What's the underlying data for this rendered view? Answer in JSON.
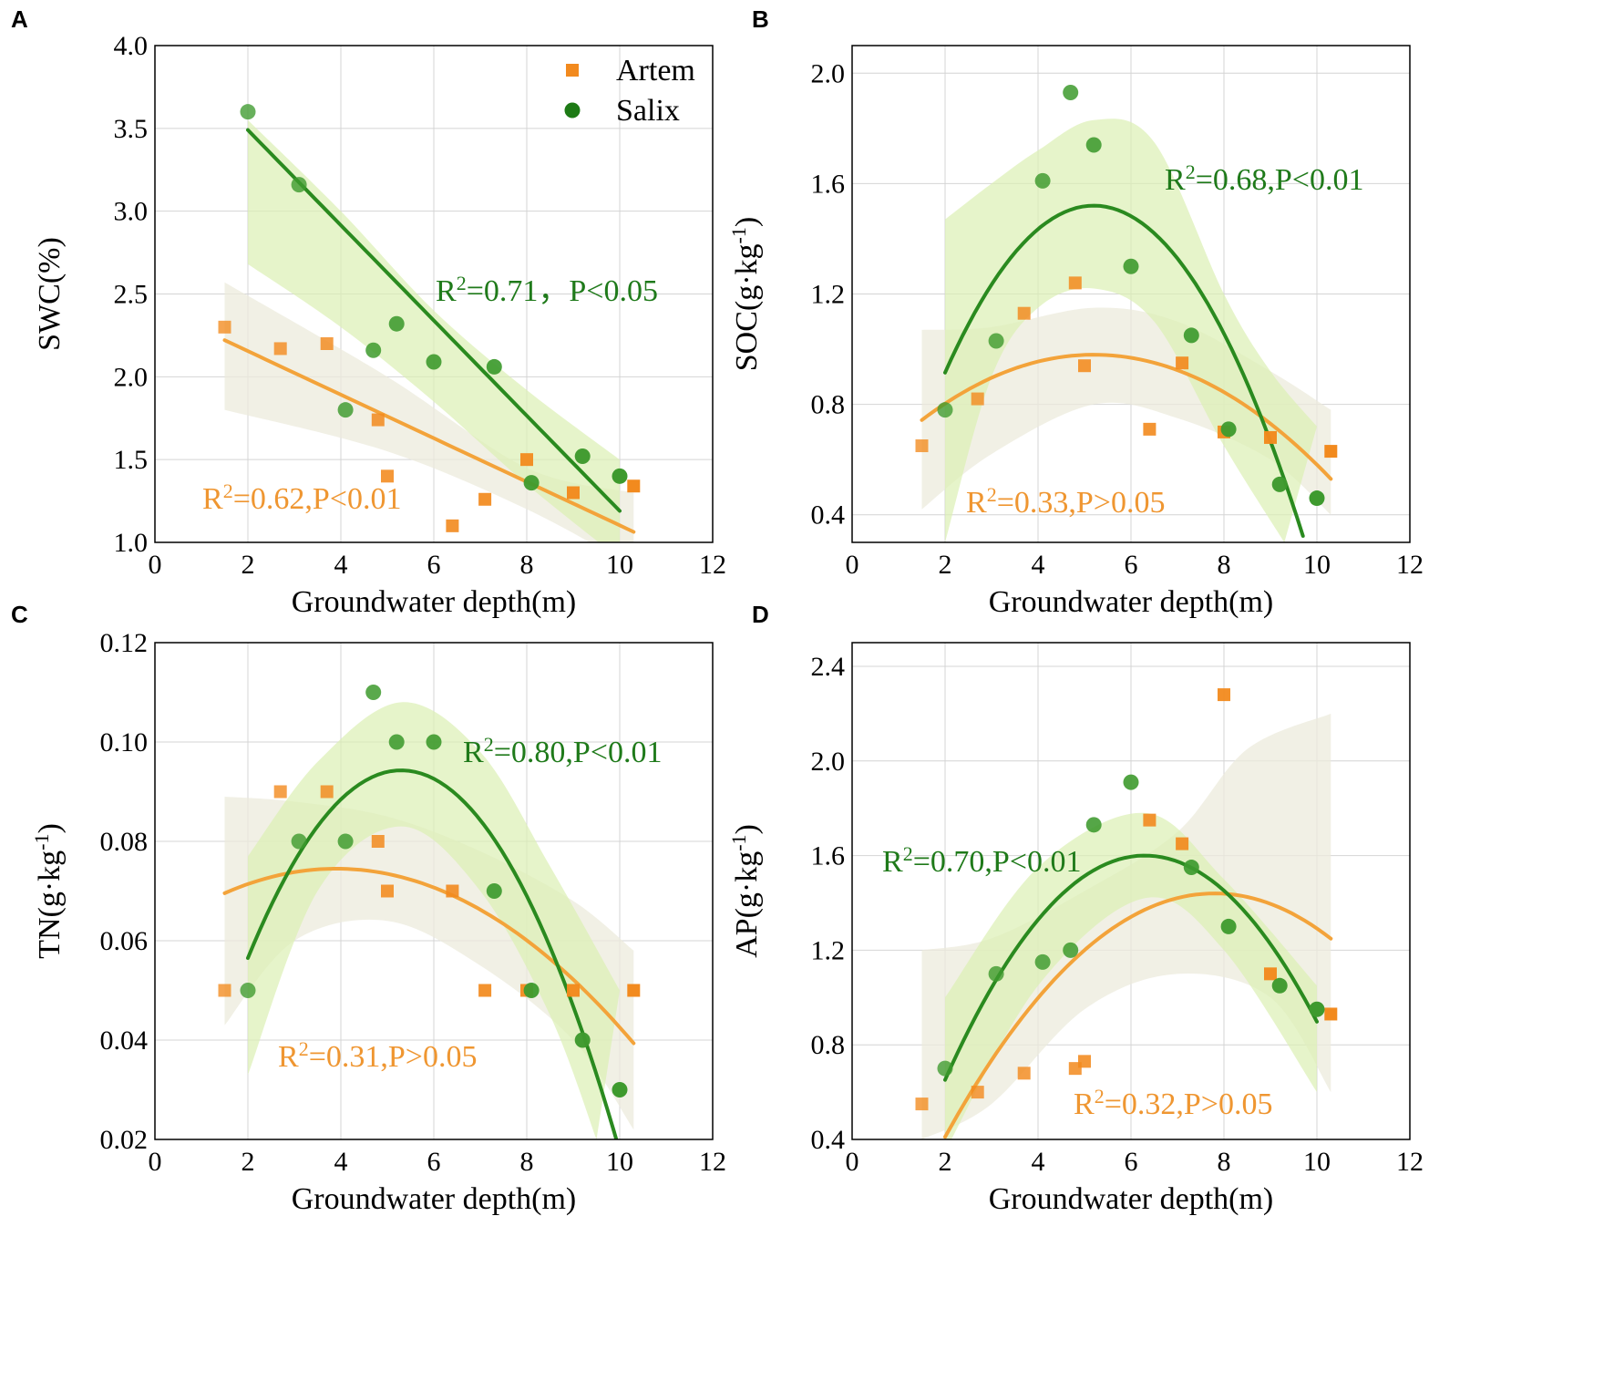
{
  "colors": {
    "artem": "#f28a1e",
    "artem_fit": "#f3a33a",
    "artem_band": "#ecebdc",
    "salix": "#2a8a1f",
    "salix_point": "#3e9a2e",
    "salix_band": "#dcefb4",
    "salix_text": "#1f7a1a",
    "artem_text": "#ef9631"
  },
  "legend": {
    "artem": "Artem",
    "salix": "Salix"
  },
  "chart_data": [
    {
      "panel": "A",
      "type": "scatter",
      "xlabel": "Groundwater depth(m)",
      "ylabel": "SWC(%)",
      "xlim": [
        0,
        12
      ],
      "ylim": [
        1.0,
        4.0
      ],
      "xticks": [
        0,
        2,
        4,
        6,
        8,
        10,
        12
      ],
      "yticks": [
        1.0,
        1.5,
        2.0,
        2.5,
        3.0,
        3.5,
        4.0
      ],
      "ytick_labels": [
        "1.0",
        "1.5",
        "2.0",
        "2.5",
        "3.0",
        "3.5",
        "4.0"
      ],
      "legend": true,
      "series": [
        {
          "name": "Artem",
          "points": [
            [
              1.5,
              2.3
            ],
            [
              2.7,
              2.17
            ],
            [
              3.7,
              2.2
            ],
            [
              4.8,
              1.74
            ],
            [
              5.0,
              1.4
            ],
            [
              6.4,
              1.1
            ],
            [
              7.1,
              1.26
            ],
            [
              8.0,
              1.5
            ],
            [
              9.0,
              1.3
            ],
            [
              10.3,
              1.34
            ]
          ],
          "fit": {
            "kind": "linear",
            "coef": [
              2.418,
              -0.1315
            ],
            "range": [
              1.5,
              10.3
            ]
          },
          "band": {
            "lower": [
              [
                1.5,
                1.8
              ],
              [
                5.0,
                1.55
              ],
              [
                8.0,
                1.2
              ],
              [
                10.3,
                0.85
              ]
            ],
            "upper": [
              [
                1.5,
                2.57
              ],
              [
                5.0,
                2.0
              ],
              [
                8.0,
                1.45
              ],
              [
                10.3,
                1.3
              ]
            ]
          },
          "stat": "R²=0.62,P<0.01"
        },
        {
          "name": "Salix",
          "points": [
            [
              2.0,
              3.6
            ],
            [
              3.1,
              3.16
            ],
            [
              4.1,
              1.8
            ],
            [
              4.7,
              2.16
            ],
            [
              5.2,
              2.32
            ],
            [
              6.0,
              2.09
            ],
            [
              7.3,
              2.06
            ],
            [
              8.1,
              1.36
            ],
            [
              9.2,
              1.52
            ],
            [
              10.0,
              1.4
            ]
          ],
          "fit": {
            "kind": "linear",
            "coef": [
              4.065,
              -0.2875
            ],
            "range": [
              2.0,
              10.0
            ]
          },
          "band": {
            "lower": [
              [
                2.0,
                2.68
              ],
              [
                4.0,
                2.3
              ],
              [
                6.0,
                1.85
              ],
              [
                8.0,
                1.35
              ],
              [
                10.0,
                0.9
              ]
            ],
            "upper": [
              [
                2.0,
                3.55
              ],
              [
                4.0,
                3.0
              ],
              [
                6.0,
                2.4
              ],
              [
                8.0,
                1.92
              ],
              [
                10.0,
                1.5
              ]
            ]
          },
          "stat": "R²=0.71，P<0.05"
        }
      ]
    },
    {
      "panel": "B",
      "type": "scatter",
      "xlabel": "Groundwater depth(m)",
      "ylabel": "SOC(g·kg⁻¹)",
      "xlim": [
        0,
        12
      ],
      "ylim": [
        0.3,
        2.1
      ],
      "xticks": [
        0,
        2,
        4,
        6,
        8,
        10,
        12
      ],
      "yticks": [
        0.4,
        0.8,
        1.2,
        1.6,
        2.0
      ],
      "ytick_labels": [
        "0.4",
        "0.8",
        "1.2",
        "1.6",
        "2.0"
      ],
      "legend": false,
      "series": [
        {
          "name": "Artem",
          "points": [
            [
              1.5,
              0.65
            ],
            [
              2.7,
              0.82
            ],
            [
              3.7,
              1.13
            ],
            [
              4.8,
              1.24
            ],
            [
              5.0,
              0.94
            ],
            [
              6.4,
              0.71
            ],
            [
              7.1,
              0.95
            ],
            [
              8.0,
              0.7
            ],
            [
              9.0,
              0.68
            ],
            [
              10.3,
              0.63
            ]
          ],
          "fit": {
            "kind": "quadratic",
            "coef": [
              0.98,
              5.2,
              -0.0173
            ],
            "range": [
              1.5,
              10.3
            ]
          },
          "band": {
            "lower": [
              [
                1.5,
                0.42
              ],
              [
                3.0,
                0.62
              ],
              [
                5.2,
                0.8
              ],
              [
                7.0,
                0.75
              ],
              [
                9.0,
                0.6
              ],
              [
                10.3,
                0.4
              ]
            ],
            "upper": [
              [
                1.5,
                1.07
              ],
              [
                3.0,
                1.08
              ],
              [
                5.2,
                1.15
              ],
              [
                7.0,
                1.1
              ],
              [
                9.0,
                0.92
              ],
              [
                10.3,
                0.78
              ]
            ]
          },
          "stat": "R²=0.33,P>0.05"
        },
        {
          "name": "Salix",
          "points": [
            [
              2.0,
              0.78
            ],
            [
              3.1,
              1.03
            ],
            [
              4.1,
              1.61
            ],
            [
              4.7,
              1.93
            ],
            [
              5.2,
              1.74
            ],
            [
              6.0,
              1.3
            ],
            [
              7.3,
              1.05
            ],
            [
              8.1,
              0.71
            ],
            [
              9.2,
              0.51
            ],
            [
              10.0,
              0.46
            ]
          ],
          "fit": {
            "kind": "quadratic",
            "coef": [
              1.52,
              5.2,
              -0.0591
            ],
            "range": [
              2.0,
              9.7
            ]
          },
          "band": {
            "lower": [
              [
                2.0,
                0.3
              ],
              [
                3.0,
                0.9
              ],
              [
                4.0,
                1.15
              ],
              [
                5.2,
                1.22
              ],
              [
                6.5,
                1.1
              ],
              [
                8.0,
                0.65
              ],
              [
                9.3,
                0.3
              ]
            ],
            "upper": [
              [
                2.0,
                1.47
              ],
              [
                3.0,
                1.6
              ],
              [
                4.0,
                1.72
              ],
              [
                5.2,
                1.83
              ],
              [
                6.5,
                1.75
              ],
              [
                8.0,
                1.2
              ],
              [
                9.0,
                0.92
              ],
              [
                10.0,
                0.72
              ]
            ]
          },
          "stat": "R²=0.68,P<0.01"
        }
      ]
    },
    {
      "panel": "C",
      "type": "scatter",
      "xlabel": "Groundwater depth(m)",
      "ylabel": "TN(g·kg⁻¹)",
      "xlim": [
        0,
        12
      ],
      "ylim": [
        0.02,
        0.12
      ],
      "xticks": [
        0,
        2,
        4,
        6,
        8,
        10,
        12
      ],
      "yticks": [
        0.02,
        0.04,
        0.06,
        0.08,
        0.1,
        0.12
      ],
      "ytick_labels": [
        "0.02",
        "0.04",
        "0.06",
        "0.08",
        "0.10",
        "0.12"
      ],
      "legend": false,
      "series": [
        {
          "name": "Artem",
          "points": [
            [
              1.5,
              0.05
            ],
            [
              2.7,
              0.09
            ],
            [
              3.7,
              0.09
            ],
            [
              4.8,
              0.08
            ],
            [
              5.0,
              0.07
            ],
            [
              6.4,
              0.07
            ],
            [
              7.1,
              0.05
            ],
            [
              8.0,
              0.05
            ],
            [
              9.0,
              0.05
            ],
            [
              10.3,
              0.05
            ]
          ],
          "fit": {
            "kind": "quadratic",
            "coef": [
              0.0745,
              3.9,
              -0.000858
            ],
            "range": [
              1.5,
              10.3
            ]
          },
          "band": {
            "lower": [
              [
                1.5,
                0.043
              ],
              [
                3.0,
                0.06
              ],
              [
                5.0,
                0.064
              ],
              [
                7.0,
                0.055
              ],
              [
                9.0,
                0.04
              ],
              [
                10.3,
                0.022
              ]
            ],
            "upper": [
              [
                1.5,
                0.089
              ],
              [
                3.0,
                0.088
              ],
              [
                5.0,
                0.085
              ],
              [
                7.0,
                0.078
              ],
              [
                9.0,
                0.068
              ],
              [
                10.3,
                0.058
              ]
            ]
          },
          "stat": "R²=0.31,P>0.05"
        },
        {
          "name": "Salix",
          "points": [
            [
              2.0,
              0.05
            ],
            [
              3.1,
              0.08
            ],
            [
              4.1,
              0.08
            ],
            [
              4.7,
              0.11
            ],
            [
              5.2,
              0.1
            ],
            [
              6.0,
              0.1
            ],
            [
              7.3,
              0.07
            ],
            [
              8.1,
              0.05
            ],
            [
              9.2,
              0.04
            ],
            [
              10.0,
              0.03
            ]
          ],
          "fit": {
            "kind": "quadratic",
            "coef": [
              0.0943,
              5.3,
              -0.00347
            ],
            "range": [
              2.0,
              10.0
            ]
          },
          "band": {
            "lower": [
              [
                2.0,
                0.033
              ],
              [
                3.5,
                0.07
              ],
              [
                5.3,
                0.083
              ],
              [
                7.0,
                0.07
              ],
              [
                8.5,
                0.045
              ],
              [
                9.5,
                0.02
              ]
            ],
            "upper": [
              [
                2.0,
                0.077
              ],
              [
                3.5,
                0.096
              ],
              [
                5.3,
                0.108
              ],
              [
                7.0,
                0.098
              ],
              [
                8.5,
                0.075
              ],
              [
                10.0,
                0.05
              ]
            ]
          },
          "stat": "R²=0.80,P<0.01"
        }
      ]
    },
    {
      "panel": "D",
      "type": "scatter",
      "xlabel": "Groundwater depth(m)",
      "ylabel": "AP(g·kg⁻¹)",
      "xlim": [
        0,
        12
      ],
      "ylim": [
        0.4,
        2.5
      ],
      "xticks": [
        0,
        2,
        4,
        6,
        8,
        10,
        12
      ],
      "yticks": [
        0.4,
        0.8,
        1.2,
        1.6,
        2.0,
        2.4
      ],
      "ytick_labels": [
        "0.4",
        "0.8",
        "1.2",
        "1.6",
        "2.0",
        "2.4"
      ],
      "legend": false,
      "series": [
        {
          "name": "Artem",
          "points": [
            [
              1.5,
              0.55
            ],
            [
              2.7,
              0.6
            ],
            [
              3.7,
              0.68
            ],
            [
              4.8,
              0.7
            ],
            [
              5.0,
              0.73
            ],
            [
              6.4,
              1.75
            ],
            [
              7.1,
              1.65
            ],
            [
              8.0,
              2.28
            ],
            [
              9.0,
              1.1
            ],
            [
              10.3,
              0.93
            ]
          ],
          "fit": {
            "kind": "quadratic",
            "coef": [
              1.44,
              7.8,
              -0.0306
            ],
            "range": [
              2.0,
              10.3
            ]
          },
          "band": {
            "lower": [
              [
                1.5,
                0.4
              ],
              [
                3.0,
                0.55
              ],
              [
                5.0,
                0.95
              ],
              [
                7.0,
                1.1
              ],
              [
                9.0,
                1.0
              ],
              [
                10.3,
                0.6
              ]
            ],
            "upper": [
              [
                1.5,
                1.2
              ],
              [
                3.0,
                1.25
              ],
              [
                5.0,
                1.45
              ],
              [
                7.0,
                1.7
              ],
              [
                8.5,
                2.05
              ],
              [
                10.3,
                2.2
              ]
            ]
          },
          "stat": "R²=0.32,P>0.05"
        },
        {
          "name": "Salix",
          "points": [
            [
              2.0,
              0.7
            ],
            [
              3.1,
              1.1
            ],
            [
              4.1,
              1.15
            ],
            [
              4.7,
              1.2
            ],
            [
              5.2,
              1.73
            ],
            [
              6.0,
              1.91
            ],
            [
              7.3,
              1.55
            ],
            [
              8.1,
              1.3
            ],
            [
              9.2,
              1.05
            ],
            [
              10.0,
              0.95
            ]
          ],
          "fit": {
            "kind": "quadratic",
            "coef": [
              1.6,
              6.3,
              -0.0513
            ],
            "range": [
              2.0,
              10.0
            ]
          },
          "band": {
            "lower": [
              [
                2.0,
                0.35
              ],
              [
                4.0,
                1.05
              ],
              [
                6.3,
                1.42
              ],
              [
                8.0,
                1.2
              ],
              [
                10.0,
                0.6
              ]
            ],
            "upper": [
              [
                2.0,
                1.0
              ],
              [
                4.0,
                1.55
              ],
              [
                6.3,
                1.78
              ],
              [
                8.0,
                1.5
              ],
              [
                10.0,
                1.05
              ]
            ]
          },
          "stat": "R²=0.70,P<0.01"
        }
      ]
    }
  ]
}
